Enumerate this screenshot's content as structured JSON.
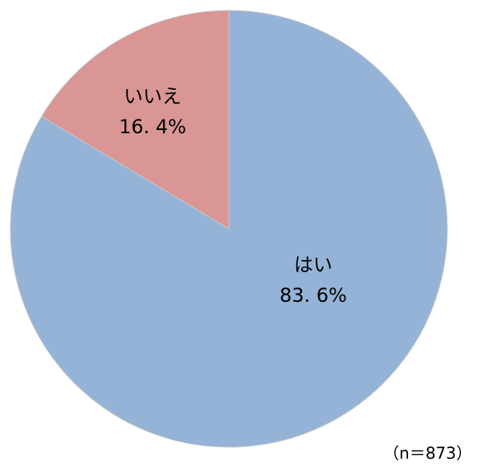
{
  "chart_data": {
    "type": "pie",
    "categories": [
      "はい",
      "いいえ"
    ],
    "values": [
      83.6,
      16.4
    ],
    "value_labels": [
      "83. 6%",
      "16. 4%"
    ],
    "colors": [
      "#95b3d7",
      "#d99694"
    ],
    "annotation": "（n＝873）"
  }
}
